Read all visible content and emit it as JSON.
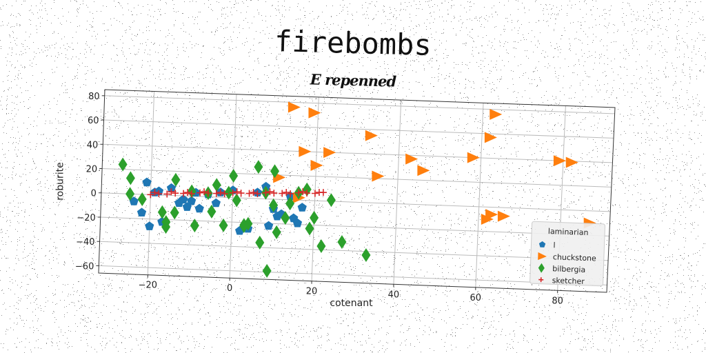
{
  "suptitle": "firebombs",
  "chart_data": {
    "type": "scatter",
    "title": "E repenned",
    "xlabel": "cotenant",
    "ylabel": "roburite",
    "xlim": [
      -32,
      92
    ],
    "ylim": [
      -66,
      85
    ],
    "xticks": [
      -20,
      0,
      20,
      40,
      60,
      80
    ],
    "yticks": [
      -60,
      -40,
      -20,
      0,
      20,
      40,
      60,
      80
    ],
    "xtick_labels": [
      "−20",
      "0",
      "20",
      "40",
      "60",
      "80"
    ],
    "ytick_labels": [
      "−60",
      "−40",
      "−20",
      "0",
      "20",
      "40",
      "60",
      "80"
    ],
    "grid": true,
    "legend": {
      "title": "laminarian",
      "placement": "lower-right"
    },
    "series": [
      {
        "name": "l",
        "marker": "pentagon",
        "color": "#1f77b4",
        "x": [
          -24,
          -22,
          -21,
          -20,
          -19,
          -18,
          -17,
          -15,
          -13,
          -12,
          -11,
          -10,
          -9,
          -8,
          -6,
          -4,
          -3,
          0,
          2,
          4,
          6,
          8,
          9,
          10,
          11,
          12,
          14,
          15,
          16,
          17
        ],
        "y": [
          -6,
          -15,
          10,
          -26,
          2,
          3,
          -22,
          6,
          -6,
          -3,
          -9,
          -4,
          3,
          -10,
          2,
          -5,
          4,
          6,
          -27,
          -25,
          5,
          10,
          -22,
          -8,
          -14,
          -12,
          3,
          -15,
          -19,
          -6
        ]
      },
      {
        "name": "chuckstone",
        "marker": "triangle-right",
        "color": "#ff7f0e",
        "x": [
          14,
          19,
          17,
          23,
          20,
          11,
          16,
          33,
          35,
          43,
          46,
          58,
          62,
          62,
          63,
          66,
          63,
          79,
          82,
          87
        ],
        "y": [
          76,
          72,
          40,
          40,
          29,
          18,
          2,
          55,
          22,
          37,
          28,
          40,
          57,
          -10,
          -6,
          -7,
          76,
          40,
          39,
          -10
        ]
      },
      {
        "name": "bilbergia",
        "marker": "thin-diamond",
        "color": "#2ca02c",
        "x": [
          -27,
          -25,
          -25,
          -22,
          -17,
          -16,
          -16,
          -14,
          -14,
          -10,
          -9,
          -6,
          -5,
          -4,
          -2,
          -1,
          0,
          1,
          3,
          3,
          4,
          6,
          7,
          8,
          9,
          10,
          10,
          11,
          13,
          14,
          16,
          18,
          19,
          20,
          22,
          24,
          27,
          33
        ],
        "y": [
          24,
          0,
          13,
          -4,
          -14,
          -22,
          -26,
          13,
          -14,
          4,
          -24,
          3,
          -12,
          10,
          -23,
          4,
          18,
          -2,
          -23,
          -22,
          -21,
          26,
          -36,
          5,
          -59,
          -5,
          23,
          -27,
          -15,
          -3,
          6,
          9,
          -23,
          -14,
          -37,
          1,
          -33,
          -43
        ]
      },
      {
        "name": "sketcher",
        "marker": "plus",
        "color": "#d62728",
        "x": [
          -20,
          -18,
          -16,
          -14,
          -12,
          -10,
          -8,
          -6,
          -4,
          -2,
          0,
          2,
          4,
          6,
          8,
          10,
          12,
          14,
          16,
          18,
          20,
          22,
          -19,
          -15,
          -11,
          -7,
          -3,
          1,
          5,
          9,
          13,
          17,
          21
        ],
        "y": [
          0,
          1,
          1,
          2,
          2,
          2,
          3,
          3,
          3,
          3,
          4,
          4,
          4,
          4,
          5,
          5,
          5,
          5,
          6,
          6,
          6,
          7,
          2,
          3,
          3,
          4,
          4,
          5,
          5,
          6,
          6,
          7,
          7
        ]
      }
    ]
  }
}
